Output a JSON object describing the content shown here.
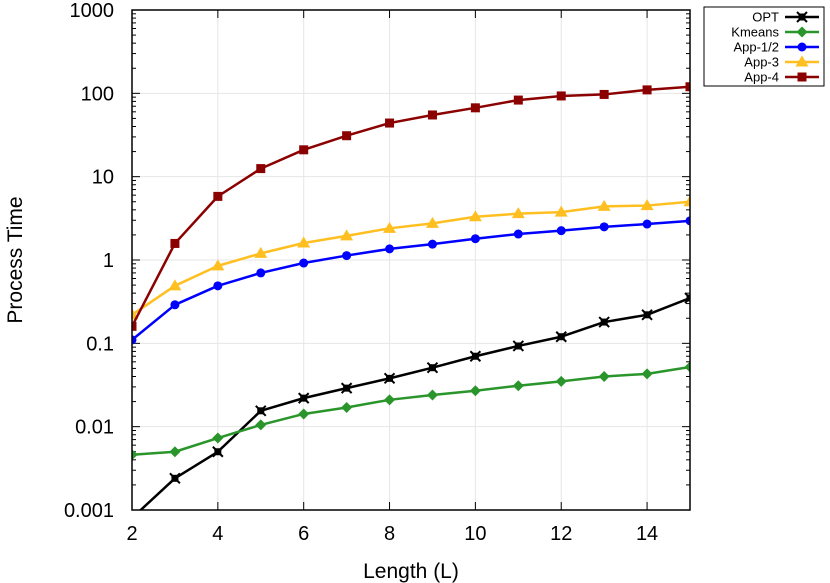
{
  "chart_data": {
    "type": "line",
    "title": "",
    "xlabel": "Length (L)",
    "ylabel": "Process Time",
    "yscale": "log",
    "xlim": [
      2,
      15
    ],
    "ylim": [
      0.001,
      1000
    ],
    "grid": true,
    "legend_position": "outside-top-right",
    "x_ticks": [
      2,
      4,
      6,
      8,
      10,
      12,
      14
    ],
    "x_tick_labels": [
      "2",
      "4",
      "6",
      "8",
      "10",
      "12",
      "14"
    ],
    "y_ticks": [
      0.001,
      0.01,
      0.1,
      1,
      10,
      100,
      1000
    ],
    "y_tick_labels": [
      "0.001",
      "0.01",
      "0.1",
      "1",
      "10",
      "100",
      "1000"
    ],
    "x": [
      2,
      3,
      4,
      5,
      6,
      7,
      8,
      9,
      10,
      11,
      12,
      13,
      14,
      15
    ],
    "series": [
      {
        "name": "OPT",
        "color": "#000000",
        "marker": "cross-square",
        "values": [
          0.0008,
          0.0024,
          0.005,
          0.0155,
          0.022,
          0.029,
          0.038,
          0.051,
          0.07,
          0.093,
          0.12,
          0.18,
          0.22,
          0.35
        ]
      },
      {
        "name": "Kmeans",
        "color": "#2a952a",
        "marker": "diamond",
        "values": [
          0.0046,
          0.005,
          0.0073,
          0.0105,
          0.0142,
          0.017,
          0.021,
          0.024,
          0.027,
          0.031,
          0.035,
          0.04,
          0.043,
          0.052
        ]
      },
      {
        "name": "App-1/2",
        "color": "#0000ff",
        "marker": "circle",
        "values": [
          0.11,
          0.29,
          0.49,
          0.7,
          0.92,
          1.13,
          1.36,
          1.55,
          1.8,
          2.05,
          2.25,
          2.5,
          2.7,
          2.95
        ]
      },
      {
        "name": "App-3",
        "color": "#ffbf20",
        "marker": "triangle",
        "values": [
          0.22,
          0.49,
          0.85,
          1.2,
          1.6,
          1.95,
          2.4,
          2.75,
          3.3,
          3.6,
          3.75,
          4.4,
          4.5,
          5.0
        ]
      },
      {
        "name": "App-4",
        "color": "#8b0000",
        "marker": "square",
        "values": [
          0.16,
          1.58,
          5.8,
          12.5,
          21,
          31,
          44,
          55,
          67,
          83,
          93,
          97,
          110,
          120
        ]
      }
    ]
  }
}
